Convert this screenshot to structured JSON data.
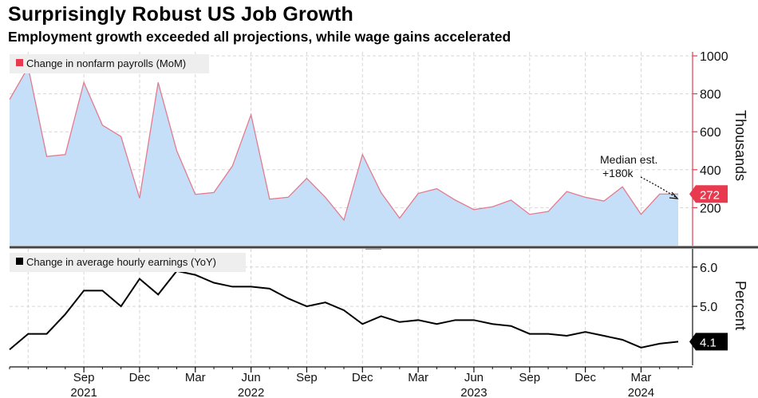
{
  "title": "Surprisingly Robust US Job Growth",
  "subtitle": "Employment growth exceeded all projections, while wage gains accelerated",
  "colors": {
    "payrolls_fill": "#c5dff9",
    "payrolls_line": "#e47a8e",
    "payrolls_axis": "#e8394f",
    "earnings_line": "#000000",
    "grid": "#d6d6d6",
    "legend_bg": "#eeeeee"
  },
  "chart_data": [
    {
      "type": "area",
      "legend": "Change in nonfarm payrolls (MoM)",
      "ylabel": "Thousands",
      "ylim": [
        0,
        1000
      ],
      "yticks": [
        200,
        400,
        600,
        800,
        1000
      ],
      "y_axis_side": "right",
      "legend_position": "top-left",
      "grid": true,
      "x": [
        "2021-05",
        "2021-06",
        "2021-07",
        "2021-08",
        "2021-09",
        "2021-10",
        "2021-11",
        "2021-12",
        "2022-01",
        "2022-02",
        "2022-03",
        "2022-04",
        "2022-05",
        "2022-06",
        "2022-07",
        "2022-08",
        "2022-09",
        "2022-10",
        "2022-11",
        "2022-12",
        "2023-01",
        "2023-02",
        "2023-03",
        "2023-04",
        "2023-05",
        "2023-06",
        "2023-07",
        "2023-08",
        "2023-09",
        "2023-10",
        "2023-11",
        "2023-12",
        "2024-01",
        "2024-02",
        "2024-03",
        "2024-04",
        "2024-05"
      ],
      "values": [
        770,
        940,
        470,
        480,
        860,
        635,
        575,
        250,
        860,
        500,
        270,
        280,
        420,
        690,
        245,
        255,
        355,
        255,
        135,
        480,
        280,
        145,
        275,
        300,
        240,
        190,
        205,
        240,
        165,
        180,
        285,
        255,
        235,
        310,
        165,
        272,
        272
      ],
      "last_value_label": "272",
      "annotations": [
        {
          "text_lines": [
            "Median est.",
            "+180k"
          ],
          "points_to": "2024-05"
        }
      ]
    },
    {
      "type": "line",
      "legend": "Change in average hourly earnings (YoY)",
      "ylabel": "Percent",
      "ylim": [
        3.5,
        6.3
      ],
      "yticks": [
        "5.0",
        "6.0"
      ],
      "y_axis_side": "right",
      "legend_position": "top-left",
      "grid": true,
      "x": [
        "2021-05",
        "2021-06",
        "2021-07",
        "2021-08",
        "2021-09",
        "2021-10",
        "2021-11",
        "2021-12",
        "2022-01",
        "2022-02",
        "2022-03",
        "2022-04",
        "2022-05",
        "2022-06",
        "2022-07",
        "2022-08",
        "2022-09",
        "2022-10",
        "2022-11",
        "2022-12",
        "2023-01",
        "2023-02",
        "2023-03",
        "2023-04",
        "2023-05",
        "2023-06",
        "2023-07",
        "2023-08",
        "2023-09",
        "2023-10",
        "2023-11",
        "2023-12",
        "2024-01",
        "2024-02",
        "2024-03",
        "2024-04",
        "2024-05"
      ],
      "values": [
        3.9,
        4.3,
        4.3,
        4.8,
        5.4,
        5.4,
        5.0,
        5.7,
        5.3,
        5.9,
        5.8,
        5.6,
        5.5,
        5.5,
        5.45,
        5.2,
        5.0,
        5.1,
        4.9,
        4.55,
        4.75,
        4.6,
        4.65,
        4.55,
        4.65,
        4.65,
        4.55,
        4.5,
        4.3,
        4.3,
        4.25,
        4.35,
        4.25,
        4.15,
        3.95,
        4.05,
        4.1
      ],
      "last_value_label": "4.1"
    }
  ],
  "x_axis": {
    "month_ticks": [
      {
        "label": "Sep",
        "x": "2021-09"
      },
      {
        "label": "Dec",
        "x": "2021-12"
      },
      {
        "label": "Mar",
        "x": "2022-03"
      },
      {
        "label": "Jun",
        "x": "2022-06"
      },
      {
        "label": "Sep",
        "x": "2022-09"
      },
      {
        "label": "Dec",
        "x": "2022-12"
      },
      {
        "label": "Mar",
        "x": "2023-03"
      },
      {
        "label": "Jun",
        "x": "2023-06"
      },
      {
        "label": "Sep",
        "x": "2023-09"
      },
      {
        "label": "Dec",
        "x": "2023-12"
      },
      {
        "label": "Mar",
        "x": "2024-03"
      }
    ],
    "year_labels": [
      {
        "label": "2021",
        "x": "2021-09"
      },
      {
        "label": "2022",
        "x": "2022-06"
      },
      {
        "label": "2023",
        "x": "2023-06"
      },
      {
        "label": "2024",
        "x": "2024-03"
      }
    ]
  }
}
